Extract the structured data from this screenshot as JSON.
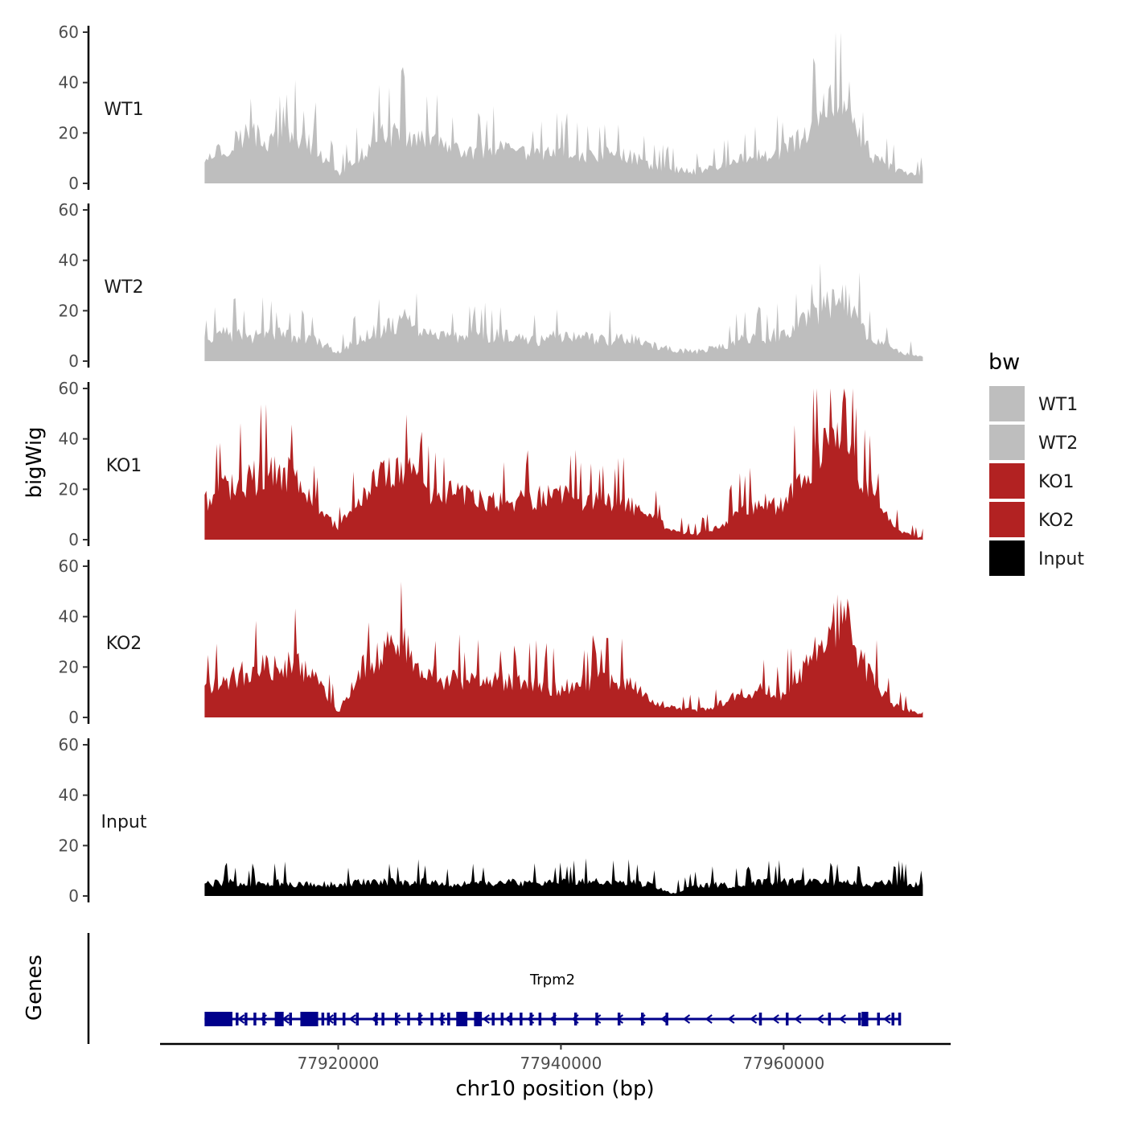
{
  "chart_data": {
    "type": "area",
    "title": "",
    "ylabel": "bigWig",
    "xlabel": "chr10 position (bp)",
    "chromosome": "chr10",
    "x_range": [
      77908000,
      77972500
    ],
    "xlim": [
      77904000,
      77975000
    ],
    "x_ticks": [
      77920000,
      77940000,
      77960000
    ],
    "x_tick_labels": [
      "77920000",
      "77940000",
      "77960000"
    ],
    "y_ticks": [
      0,
      20,
      40,
      60
    ],
    "y_tick_labels": [
      "0",
      "20",
      "40",
      "60"
    ],
    "ylim": [
      0,
      60
    ],
    "legend": {
      "title": "bw",
      "position": "right",
      "entries": [
        {
          "label": "WT1",
          "color": "#bebebe"
        },
        {
          "label": "WT2",
          "color": "#bebebe"
        },
        {
          "label": "KO1",
          "color": "#b22222"
        },
        {
          "label": "KO2",
          "color": "#b22222"
        },
        {
          "label": "Input",
          "color": "#000000"
        }
      ]
    },
    "series": [
      {
        "name": "WT1",
        "color": "#bebebe",
        "x": [
          77908000,
          77910000,
          77912000,
          77913500,
          77916000,
          77918000,
          77920000,
          77922000,
          77924000,
          77926000,
          77928000,
          77930000,
          77932000,
          77934000,
          77936000,
          77938000,
          77940000,
          77942000,
          77944000,
          77946000,
          77948000,
          77950000,
          77952000,
          77954000,
          77956000,
          77958000,
          77960000,
          77962000,
          77964000,
          77965500,
          77967000,
          77968000,
          77970000,
          77972000,
          77972500
        ],
        "values": [
          12,
          16,
          22,
          18,
          20,
          15,
          4,
          12,
          20,
          22,
          18,
          14,
          13,
          15,
          13,
          12,
          14,
          11,
          13,
          12,
          8,
          6,
          5,
          7,
          10,
          12,
          14,
          22,
          32,
          40,
          18,
          12,
          6,
          3,
          4
        ]
      },
      {
        "name": "WT2",
        "color": "#bebebe",
        "x": [
          77908000,
          77910000,
          77912000,
          77914000,
          77916000,
          77918000,
          77920000,
          77922000,
          77924000,
          77926000,
          77928000,
          77930000,
          77932000,
          77934000,
          77936000,
          77938000,
          77940000,
          77942000,
          77944000,
          77946000,
          77948000,
          77950000,
          77952000,
          77954000,
          77956000,
          77958000,
          77960000,
          77962000,
          77964000,
          77965500,
          77967000,
          77968000,
          77970000,
          77972000,
          77972500
        ],
        "values": [
          8,
          12,
          10,
          12,
          11,
          9,
          4,
          10,
          14,
          18,
          12,
          11,
          10,
          11,
          10,
          9,
          11,
          10,
          9,
          10,
          7,
          5,
          4,
          6,
          9,
          10,
          12,
          18,
          25,
          28,
          15,
          10,
          5,
          2,
          2
        ]
      },
      {
        "name": "KO1",
        "color": "#b22222",
        "x": [
          77908000,
          77910000,
          77912000,
          77914000,
          77916000,
          77918000,
          77920000,
          77922000,
          77924000,
          77926000,
          77928000,
          77930000,
          77932000,
          77934000,
          77936000,
          77938000,
          77940000,
          77942000,
          77944000,
          77946000,
          77948000,
          77950000,
          77952000,
          77954000,
          77956000,
          77958000,
          77960000,
          77962000,
          77964000,
          77965500,
          77967000,
          77968000,
          77970000,
          77972000,
          77972500
        ],
        "values": [
          16,
          22,
          26,
          28,
          28,
          14,
          5,
          18,
          28,
          30,
          18,
          20,
          18,
          16,
          17,
          18,
          19,
          17,
          16,
          15,
          10,
          4,
          2,
          5,
          12,
          16,
          14,
          30,
          40,
          48,
          28,
          20,
          5,
          1,
          1
        ]
      },
      {
        "name": "KO2",
        "color": "#b22222",
        "x": [
          77908000,
          77910000,
          77912000,
          77914000,
          77916000,
          77918000,
          77920000,
          77922000,
          77924000,
          77926000,
          77928000,
          77930000,
          77932000,
          77934000,
          77936000,
          77938000,
          77940000,
          77942000,
          77944000,
          77946000,
          77948000,
          77950000,
          77952000,
          77954000,
          77956000,
          77958000,
          77960000,
          77962000,
          77964000,
          77965500,
          77967000,
          77968000,
          77970000,
          77972000,
          77972500
        ],
        "values": [
          12,
          16,
          20,
          22,
          24,
          16,
          2,
          20,
          28,
          32,
          18,
          16,
          15,
          16,
          15,
          14,
          12,
          15,
          16,
          15,
          8,
          4,
          3,
          5,
          10,
          12,
          10,
          22,
          36,
          45,
          24,
          16,
          5,
          2,
          2
        ]
      },
      {
        "name": "Input",
        "color": "#000000",
        "x": [
          77908000,
          77910000,
          77912000,
          77914000,
          77916000,
          77918000,
          77920000,
          77922000,
          77924000,
          77926000,
          77928000,
          77930000,
          77932000,
          77934000,
          77936000,
          77938000,
          77940000,
          77942000,
          77944000,
          77946000,
          77948000,
          77950000,
          77952000,
          77954000,
          77956000,
          77958000,
          77960000,
          77962000,
          77964000,
          77965500,
          77967000,
          77968000,
          77970000,
          77972000,
          77972500
        ],
        "values": [
          5,
          6,
          5,
          6,
          5,
          5,
          5,
          6,
          6,
          6,
          6,
          5,
          6,
          6,
          6,
          5,
          6,
          6,
          6,
          6,
          5,
          1,
          4,
          5,
          4,
          6,
          6,
          6,
          6,
          6,
          5,
          5,
          6,
          5,
          4
        ]
      }
    ],
    "genes": {
      "panel_label": "Genes",
      "name": "Trpm2",
      "start": 77908000,
      "end": 77970500,
      "strand": "-",
      "color": "#00008b",
      "exons": [
        {
          "start": 77908000,
          "end": 77910500
        },
        {
          "start": 77914300,
          "end": 77915100
        },
        {
          "start": 77916600,
          "end": 77918200
        },
        {
          "start": 77930600,
          "end": 77931600
        },
        {
          "start": 77932200,
          "end": 77932900
        },
        {
          "start": 77967000,
          "end": 77967600
        }
      ],
      "small_exons": [
        77910900,
        77911700,
        77912500,
        77913300,
        77915700,
        77918600,
        77919100,
        77919700,
        77920500,
        77921700,
        77923400,
        77924000,
        77925200,
        77926300,
        77927300,
        77928400,
        77929300,
        77929900,
        77933900,
        77934700,
        77935500,
        77936400,
        77937300,
        77938100,
        77939400,
        77941300,
        77943200,
        77945200,
        77947300,
        77949500,
        77957900,
        77960300,
        77964100,
        77966800,
        77968500,
        77969800,
        77970400
      ]
    }
  }
}
